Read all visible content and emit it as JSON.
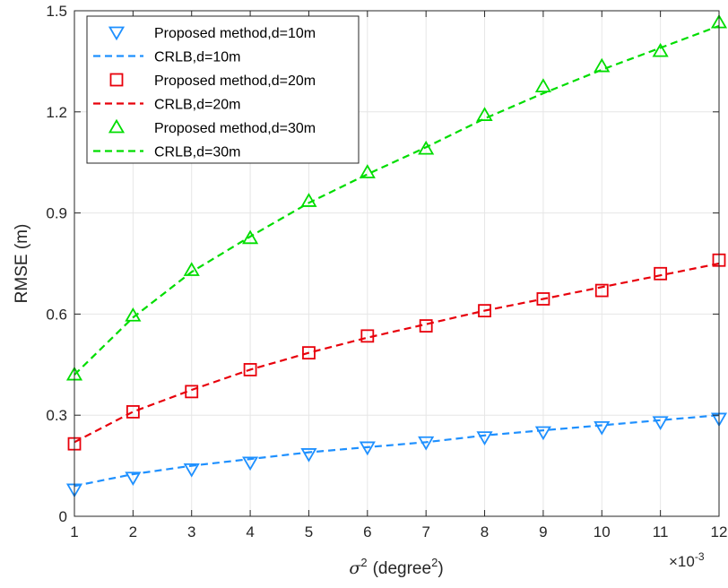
{
  "chart_data": {
    "type": "line",
    "xlabel": "σ² (degree²)",
    "xlabel_parts": {
      "sigma": "σ",
      "sigma_exp": "2",
      "unit": "(degree",
      "unit_exp": "2",
      "close": ")"
    },
    "ylabel": "RMSE (m)",
    "x_multiplier": {
      "base": "×10",
      "exponent": "-3"
    },
    "x": [
      1,
      2,
      3,
      4,
      5,
      6,
      7,
      8,
      9,
      10,
      11,
      12
    ],
    "xlim": [
      1,
      12
    ],
    "ylim": [
      0,
      1.5
    ],
    "xticks": [
      "1",
      "2",
      "3",
      "4",
      "5",
      "6",
      "7",
      "8",
      "9",
      "10",
      "11",
      "12"
    ],
    "yticks": [
      "0",
      "0.3",
      "0.6",
      "0.9",
      "1.2",
      "1.5"
    ],
    "grid": true,
    "legend_position": "top-left",
    "series": [
      {
        "name": "Proposed method,d=10m",
        "style": "marker",
        "marker": "triangle-down",
        "color": "#1E90FF",
        "values": [
          0.08,
          0.115,
          0.14,
          0.16,
          0.185,
          0.205,
          0.22,
          0.235,
          0.25,
          0.265,
          0.28,
          0.29
        ]
      },
      {
        "name": "CRLB,d=10m",
        "style": "dashed",
        "color": "#1E90FF",
        "values": [
          0.09,
          0.125,
          0.15,
          0.17,
          0.19,
          0.205,
          0.22,
          0.24,
          0.255,
          0.27,
          0.285,
          0.3
        ]
      },
      {
        "name": "Proposed method,d=20m",
        "style": "marker",
        "marker": "square",
        "color": "#E8000B",
        "values": [
          0.215,
          0.31,
          0.37,
          0.435,
          0.485,
          0.535,
          0.565,
          0.61,
          0.645,
          0.67,
          0.72,
          0.76
        ]
      },
      {
        "name": "CRLB,d=20m",
        "style": "dashed",
        "color": "#E8000B",
        "values": [
          0.22,
          0.31,
          0.375,
          0.435,
          0.485,
          0.53,
          0.57,
          0.61,
          0.645,
          0.68,
          0.715,
          0.75
        ]
      },
      {
        "name": "Proposed method,d=30m",
        "style": "marker",
        "marker": "triangle-up",
        "color": "#00DD00",
        "values": [
          0.42,
          0.595,
          0.73,
          0.825,
          0.935,
          1.02,
          1.09,
          1.19,
          1.275,
          1.335,
          1.38,
          1.465
        ]
      },
      {
        "name": "CRLB,d=30m",
        "style": "dashed",
        "color": "#00DD00",
        "values": [
          0.42,
          0.59,
          0.725,
          0.83,
          0.93,
          1.015,
          1.095,
          1.18,
          1.255,
          1.325,
          1.39,
          1.455
        ]
      }
    ]
  }
}
